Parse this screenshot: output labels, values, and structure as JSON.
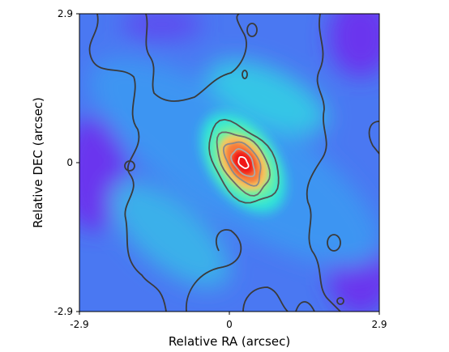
{
  "chart_data": {
    "type": "heatmap",
    "title": "",
    "xlabel": "Relative RA (arcsec)",
    "ylabel": "Relative DEC (arcsec)",
    "xlim": [
      -2.9,
      2.9
    ],
    "ylim": [
      -2.9,
      2.9
    ],
    "x_ticks": [
      {
        "value": -2.9,
        "label": "-2.9"
      },
      {
        "value": 0,
        "label": "0"
      },
      {
        "value": 2.9,
        "label": "2.9"
      }
    ],
    "y_ticks": [
      {
        "value": -2.9,
        "label": "-2.9"
      },
      {
        "value": 0,
        "label": "0"
      },
      {
        "value": 2.9,
        "label": "2.9"
      }
    ],
    "colormap": "rainbow",
    "grid": false,
    "legend": "none",
    "source": {
      "peak_x": 0.27,
      "peak_y": 0.0,
      "position_angle_deg": 35,
      "core_extent_arcsec": [
        0.55,
        0.9
      ],
      "halo_extent_arcsec": [
        1.3,
        2.2
      ]
    },
    "contour_levels": [
      {
        "extent_arcsec": [
          1.1,
          1.75
        ],
        "color": "#505050"
      },
      {
        "extent_arcsec": [
          0.8,
          1.35
        ],
        "color": "#6a6a6a"
      },
      {
        "extent_arcsec": [
          0.55,
          0.95
        ],
        "color": "#8a8a8a"
      },
      {
        "extent_arcsec": [
          0.34,
          0.6
        ],
        "color": "#aaaaaa"
      },
      {
        "extent_arcsec": [
          0.15,
          0.25
        ],
        "color": "#ffffff"
      }
    ],
    "colors": {
      "background_low": "#7a2cf0",
      "mid_blue": "#3f87f5",
      "cyan": "#2ee6d8",
      "green": "#7ff09a",
      "yellow": "#f4c860",
      "orange": "#f77b3a",
      "peak_red": "#f01818",
      "contour_outer": "#3a3a3a"
    }
  }
}
